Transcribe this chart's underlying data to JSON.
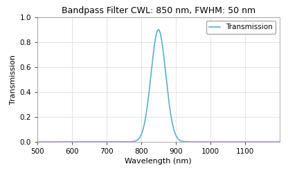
{
  "title": "Bandpass Filter CWL: 850 nm, FWHM: 50 nm",
  "xlabel": "Wavelength (nm)",
  "ylabel": "Transmission",
  "cwl": 850,
  "fwhm": 50,
  "peak_transmission": 0.9,
  "x_min": 500,
  "x_max": 1200,
  "y_min": 0.0,
  "y_max": 1.0,
  "xticks": [
    500,
    600,
    700,
    800,
    900,
    1000,
    1100
  ],
  "yticks": [
    0.0,
    0.2,
    0.4,
    0.6,
    0.8,
    1.0
  ],
  "line_color": "#5aafc8",
  "line_width": 1.2,
  "legend_label": "Transmission",
  "grid_color": "#d0d0d0",
  "background_color": "#ffffff",
  "title_fontsize": 9,
  "axis_label_fontsize": 8,
  "tick_fontsize": 7.5
}
